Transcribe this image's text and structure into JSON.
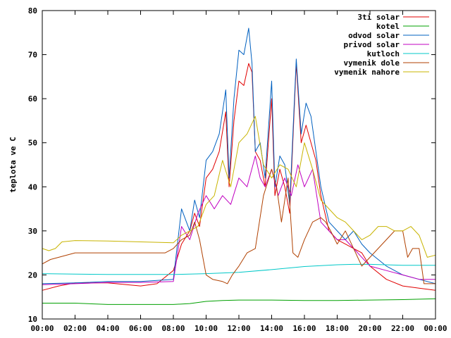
{
  "chart_data": {
    "type": "line",
    "title": "",
    "xlabel": "",
    "ylabel": "teplota ve C",
    "xlim": [
      0,
      24
    ],
    "ylim": [
      10,
      80
    ],
    "grid": false,
    "legend_position": "top-right",
    "x_ticks": [
      "00:00",
      "02:00",
      "04:00",
      "06:00",
      "08:00",
      "10:00",
      "12:00",
      "14:00",
      "16:00",
      "18:00",
      "20:00",
      "22:00",
      "00:00"
    ],
    "y_ticks": [
      10,
      20,
      30,
      40,
      50,
      60,
      70,
      80
    ],
    "series": [
      {
        "name": "3ti solar",
        "color": "#e00000",
        "x": [
          0,
          1,
          2,
          4,
          6,
          7,
          8,
          8.5,
          9,
          9.3,
          9.6,
          10,
          10.4,
          10.8,
          11.2,
          11.4,
          11.7,
          12,
          12.3,
          12.6,
          12.8,
          13,
          13.3,
          13.6,
          14,
          14.2,
          14.5,
          14.8,
          15.1,
          15.5,
          15.8,
          16.1,
          16.4,
          16.7,
          17,
          17.5,
          18,
          18.5,
          19,
          19.5,
          20,
          21,
          22,
          23,
          24
        ],
        "y": [
          16.5,
          17.5,
          18.2,
          18.2,
          17.5,
          18,
          21,
          27,
          30,
          34,
          31,
          42,
          44,
          48,
          57,
          40,
          55,
          64,
          63,
          68,
          66,
          48,
          46,
          40,
          60,
          38,
          44,
          40,
          34,
          68,
          50,
          54,
          50,
          46,
          38,
          30,
          28,
          27,
          26,
          25,
          22,
          19,
          17.5,
          17,
          16.5
        ]
      },
      {
        "name": "kotel",
        "color": "#00a000",
        "x": [
          0,
          2,
          4,
          6,
          8,
          9,
          10,
          11,
          12,
          14,
          16,
          18,
          20,
          22,
          24
        ],
        "y": [
          13.6,
          13.6,
          13.3,
          13.3,
          13.3,
          13.5,
          14,
          14.2,
          14.3,
          14.3,
          14.2,
          14.2,
          14.3,
          14.4,
          14.6
        ]
      },
      {
        "name": "odvod solar",
        "color": "#0060c0",
        "x": [
          0,
          2,
          4,
          6,
          8,
          8.5,
          9,
          9.3,
          9.6,
          10,
          10.4,
          10.8,
          11.2,
          11.4,
          11.7,
          12,
          12.3,
          12.6,
          12.8,
          13,
          13.3,
          13.6,
          14,
          14.2,
          14.5,
          14.8,
          15.1,
          15.5,
          15.8,
          16.1,
          16.4,
          16.7,
          17,
          17.5,
          18,
          18.5,
          19,
          19.5,
          20,
          21,
          22,
          23,
          24
        ],
        "y": [
          18,
          18.2,
          18.5,
          18.5,
          19,
          35,
          30,
          37,
          33,
          46,
          48,
          52,
          62,
          42,
          60,
          71,
          70,
          76,
          68,
          48,
          50,
          42,
          64,
          40,
          47,
          45,
          36,
          69,
          52,
          59,
          56,
          48,
          40,
          32,
          30,
          28,
          30,
          27,
          25,
          22,
          20,
          19,
          18
        ]
      },
      {
        "name": "privod solar",
        "color": "#c000c0",
        "x": [
          0,
          2,
          4,
          6,
          8,
          8.5,
          9,
          9.5,
          10,
          10.5,
          11,
          11.5,
          12,
          12.5,
          13,
          13.3,
          13.6,
          14,
          14.4,
          14.8,
          15.2,
          15.6,
          16,
          16.5,
          17,
          17.5,
          18,
          18.5,
          19,
          20,
          21,
          22,
          23,
          24
        ],
        "y": [
          17.8,
          18,
          18.3,
          18.3,
          18.5,
          31,
          28,
          34,
          38,
          35,
          38,
          36,
          42,
          40,
          47,
          42,
          40,
          44,
          38,
          42,
          38,
          45,
          40,
          44,
          32,
          30,
          28,
          28,
          26,
          22,
          21,
          20,
          19,
          19
        ]
      },
      {
        "name": "kutloch",
        "color": "#00c8c8",
        "x": [
          0,
          2,
          4,
          6,
          8,
          10,
          12,
          14,
          16,
          18,
          19,
          20,
          22,
          24
        ],
        "y": [
          20.3,
          20.2,
          20.1,
          20.1,
          20.1,
          20.3,
          20.6,
          21.2,
          21.9,
          22.3,
          22.4,
          22.4,
          22.2,
          22.2
        ]
      },
      {
        "name": "vymenik dole",
        "color": "#b04000",
        "x": [
          0,
          0.5,
          1,
          2,
          4,
          6,
          7.5,
          8,
          8.5,
          9,
          9.3,
          9.6,
          10,
          10.4,
          11,
          11.3,
          11.6,
          12,
          12.5,
          13,
          13.5,
          14,
          14.3,
          14.6,
          15,
          15.3,
          15.6,
          16,
          16.5,
          17,
          17.3,
          17.6,
          18,
          18.5,
          19,
          19.5,
          20,
          21,
          21.5,
          22,
          22.3,
          22.6,
          23,
          23.3,
          24
        ],
        "y": [
          22.5,
          23.5,
          24,
          25,
          25,
          25,
          25,
          26,
          28,
          29,
          32,
          28,
          20,
          19,
          18.5,
          18,
          20,
          22,
          25,
          26,
          38,
          44,
          40,
          32,
          42,
          25,
          24,
          28,
          32,
          33,
          32,
          30,
          27,
          30,
          26,
          22,
          24,
          28,
          30,
          30,
          24,
          26,
          26,
          18,
          18
        ]
      },
      {
        "name": "vymenik nahore",
        "color": "#c8b400",
        "x": [
          0,
          0.4,
          0.8,
          1.2,
          2,
          4,
          6,
          8,
          8.5,
          9,
          9.5,
          10,
          10.5,
          11,
          11.5,
          12,
          12.5,
          13,
          13.5,
          14,
          14.5,
          15,
          15.5,
          16,
          16.5,
          17,
          17.5,
          18,
          18.5,
          19,
          19.5,
          20,
          20.5,
          21,
          21.5,
          22,
          22.5,
          23,
          23.5,
          24
        ],
        "y": [
          26,
          25.5,
          26,
          27.5,
          27.8,
          27.7,
          27.5,
          27.3,
          29,
          30,
          31,
          36,
          38,
          46,
          40,
          50,
          52,
          56,
          45,
          42,
          45,
          44,
          40,
          50,
          44,
          37,
          35,
          33,
          32,
          30,
          28,
          29,
          31,
          31,
          30,
          30,
          31,
          29,
          24,
          24.5
        ]
      }
    ]
  }
}
